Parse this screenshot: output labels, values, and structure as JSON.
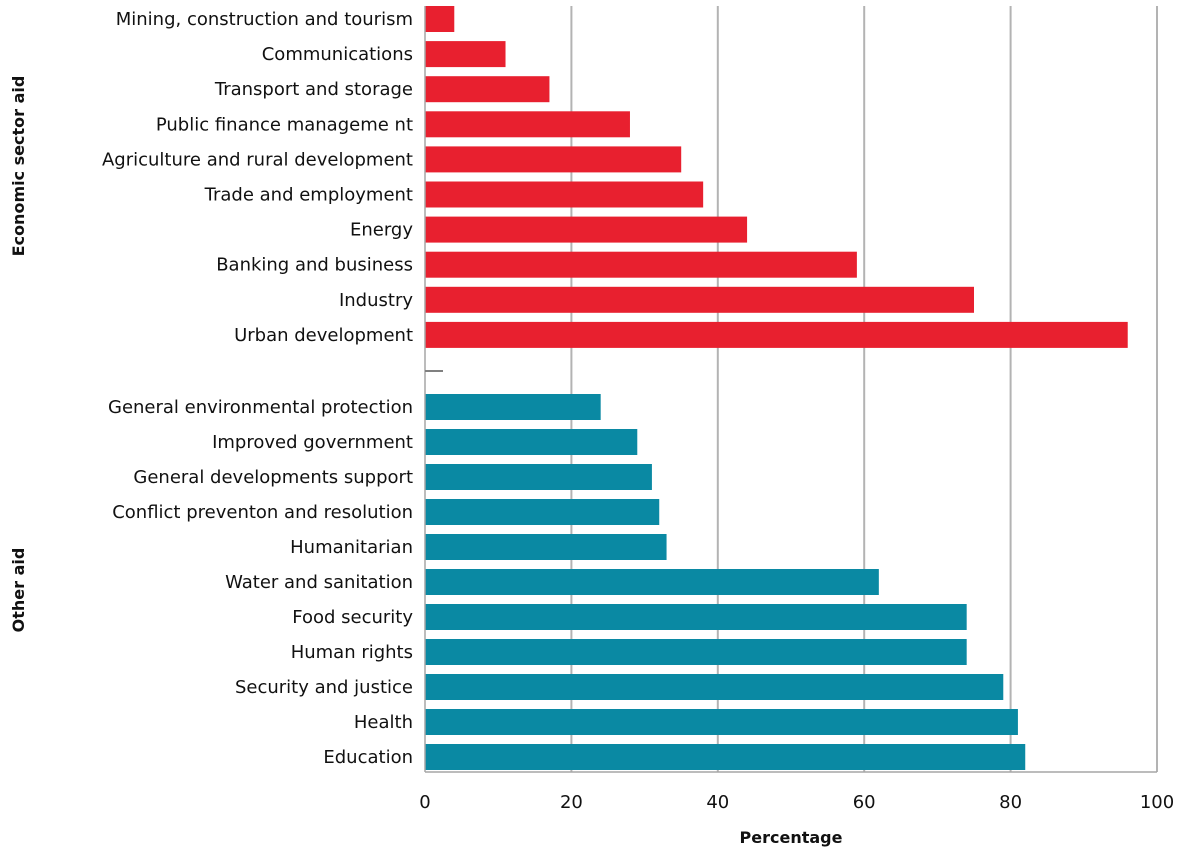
{
  "chart_data": {
    "type": "bar",
    "orientation": "horizontal",
    "xlabel": "Percentage",
    "xlim": [
      0,
      100
    ],
    "xticks": [
      "0",
      "20",
      "40",
      "60",
      "80",
      "100"
    ],
    "grid": true,
    "groups": [
      {
        "name": "Economic sector aid",
        "color": "#e8202f",
        "categories": [
          "Mining, construction and tourism",
          "Communications",
          "Transport and storage",
          "Public finance manageme nt",
          "Agriculture and rural development",
          "Trade and employment",
          "Energy",
          "Banking and business",
          "Industry",
          "Urban development"
        ],
        "values": [
          4,
          11,
          17,
          28,
          35,
          38,
          44,
          59,
          75,
          96
        ]
      },
      {
        "name": "Other aid",
        "color": "#0a89a3",
        "categories": [
          "General environmental protection",
          "Improved government",
          "General developments support",
          "Conflict preventon and  resolution",
          "Humanitarian",
          "Water and sanitation",
          "Food security",
          "Human rights",
          "Security and justice",
          "Health",
          "Education"
        ],
        "values": [
          24,
          29,
          31,
          32,
          33,
          62,
          74,
          74,
          79,
          81,
          82
        ]
      }
    ]
  }
}
